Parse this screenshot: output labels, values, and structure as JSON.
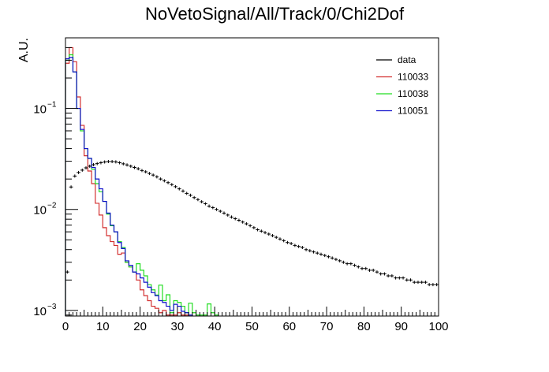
{
  "chart_data": {
    "type": "histogram",
    "title": "NoVetoSignal/All/Track/0/Chi2Dof",
    "xlabel": "",
    "ylabel": "A.U.",
    "xlim": [
      0,
      100
    ],
    "ylim": [
      0.00088,
      0.5
    ],
    "yscale": "log",
    "grid": false,
    "legend_position": "top-right",
    "x_ticks": [
      "0",
      "10",
      "20",
      "30",
      "40",
      "50",
      "60",
      "70",
      "80",
      "90",
      "100"
    ],
    "y_ticks": [
      {
        "value": 0.1,
        "mant": "10",
        "exp": "−1"
      },
      {
        "value": 0.01,
        "mant": "10",
        "exp": "−2"
      },
      {
        "value": 0.001,
        "mant": "10",
        "exp": "−3"
      }
    ],
    "bin_width": 1,
    "series": [
      {
        "name": "data",
        "color": "#000000",
        "style": "points",
        "x_start": 0,
        "values": [
          0.0024,
          0.0167,
          0.0214,
          0.0232,
          0.0245,
          0.0258,
          0.0268,
          0.0277,
          0.0284,
          0.029,
          0.0295,
          0.0298,
          0.0298,
          0.0296,
          0.029,
          0.0283,
          0.0276,
          0.0268,
          0.026,
          0.0253,
          0.0243,
          0.0236,
          0.0227,
          0.0219,
          0.021,
          0.02,
          0.0192,
          0.0184,
          0.0176,
          0.0168,
          0.016,
          0.0152,
          0.0144,
          0.0138,
          0.0131,
          0.0125,
          0.0119,
          0.0114,
          0.0108,
          0.0104,
          0.01,
          0.0096,
          0.0092,
          0.0088,
          0.0084,
          0.0081,
          0.0078,
          0.0075,
          0.0072,
          0.0069,
          0.0066,
          0.0063,
          0.0061,
          0.0059,
          0.0057,
          0.0055,
          0.0053,
          0.0051,
          0.0049,
          0.0047,
          0.0046,
          0.0044,
          0.0043,
          0.0042,
          0.004,
          0.0039,
          0.0038,
          0.0037,
          0.0036,
          0.0035,
          0.0034,
          0.0033,
          0.0032,
          0.0031,
          0.003,
          0.0029,
          0.0029,
          0.0028,
          0.0027,
          0.0026,
          0.0026,
          0.0025,
          0.0025,
          0.0024,
          0.0023,
          0.0023,
          0.0022,
          0.0022,
          0.0021,
          0.0021,
          0.0021,
          0.002,
          0.002,
          0.0019,
          0.0019,
          0.0019,
          0.0019,
          0.0018,
          0.0018,
          0.0018
        ]
      },
      {
        "name": "110033",
        "color": "#d32f2f",
        "style": "step",
        "x_start": 0,
        "values": [
          0.28,
          0.4,
          0.29,
          0.13,
          0.068,
          0.034,
          0.024,
          0.018,
          0.0115,
          0.0088,
          0.0066,
          0.0055,
          0.0048,
          0.0044,
          0.0036,
          0.0037,
          0.003,
          0.0027,
          0.0024,
          0.002,
          0.0016,
          0.0014,
          0.00125,
          0.0011,
          0.00105,
          0.00095,
          0.001,
          0.0009,
          0.0009,
          0.0009,
          0.00095,
          0.0009,
          0.0009
        ]
      },
      {
        "name": "110038",
        "color": "#22dd22",
        "style": "step",
        "x_start": 0,
        "values": [
          0.3,
          0.34,
          0.23,
          0.1,
          0.06,
          0.04,
          0.032,
          0.025,
          0.018,
          0.015,
          0.012,
          0.009,
          0.0069,
          0.006,
          0.0048,
          0.0042,
          0.003,
          0.0027,
          0.0024,
          0.0029,
          0.0025,
          0.0022,
          0.0018,
          0.0016,
          0.00142,
          0.00178,
          0.00125,
          0.00143,
          0.00095,
          0.00125,
          0.0012,
          0.0011,
          0.00095,
          0.00118,
          0.00095,
          0.0009,
          0.0009,
          0.0009,
          0.00116,
          0.00095,
          0.0009
        ]
      },
      {
        "name": "110051",
        "color": "#1010cc",
        "style": "step",
        "x_start": 0,
        "values": [
          0.31,
          0.32,
          0.23,
          0.1,
          0.062,
          0.04,
          0.032,
          0.026,
          0.02,
          0.016,
          0.012,
          0.0092,
          0.007,
          0.006,
          0.0047,
          0.0041,
          0.0031,
          0.0028,
          0.0024,
          0.0023,
          0.0021,
          0.0019,
          0.0017,
          0.0015,
          0.0014,
          0.00125,
          0.0012,
          0.0011,
          0.001,
          0.00115,
          0.0011,
          0.00098,
          0.00095,
          0.0009
        ]
      }
    ]
  }
}
